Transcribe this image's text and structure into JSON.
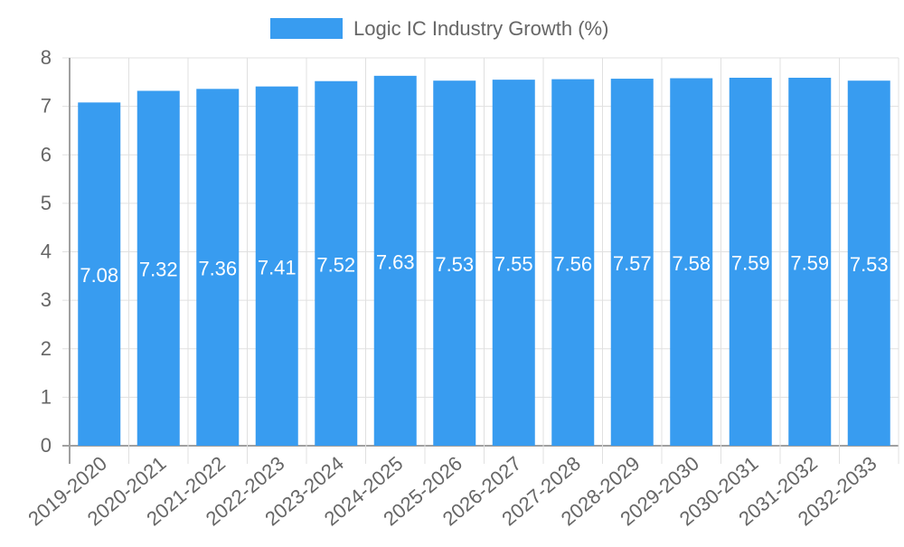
{
  "chart_data": {
    "type": "bar",
    "title": "",
    "legend": [
      {
        "label": "Logic IC Industry Growth (%)",
        "color": "#389cf0"
      }
    ],
    "legend_position": "top",
    "categories": [
      "2019-2020",
      "2020-2021",
      "2021-2022",
      "2022-2023",
      "2023-2024",
      "2024-2025",
      "2025-2026",
      "2026-2027",
      "2027-2028",
      "2028-2029",
      "2029-2030",
      "2030-2031",
      "2031-2032",
      "2032-2033"
    ],
    "series": [
      {
        "name": "Logic IC Industry Growth (%)",
        "color": "#389cf0",
        "values": [
          7.08,
          7.32,
          7.36,
          7.41,
          7.52,
          7.63,
          7.53,
          7.55,
          7.56,
          7.57,
          7.58,
          7.59,
          7.59,
          7.53
        ]
      }
    ],
    "data_labels": [
      "7.08",
      "7.32",
      "7.36",
      "7.41",
      "7.52",
      "7.63",
      "7.53",
      "7.55",
      "7.56",
      "7.57",
      "7.58",
      "7.59",
      "7.59",
      "7.53"
    ],
    "xlabel": "",
    "ylabel": "",
    "ylim": [
      0,
      8
    ],
    "yticks": [
      "0",
      "1",
      "2",
      "3",
      "4",
      "5",
      "6",
      "7",
      "8"
    ],
    "grid": true
  },
  "colors": {
    "bar": "#389cf0",
    "grid": "#e0e0e0",
    "axis": "#a0a0a0",
    "tick_text": "#666666",
    "data_label": "#ffffff"
  }
}
